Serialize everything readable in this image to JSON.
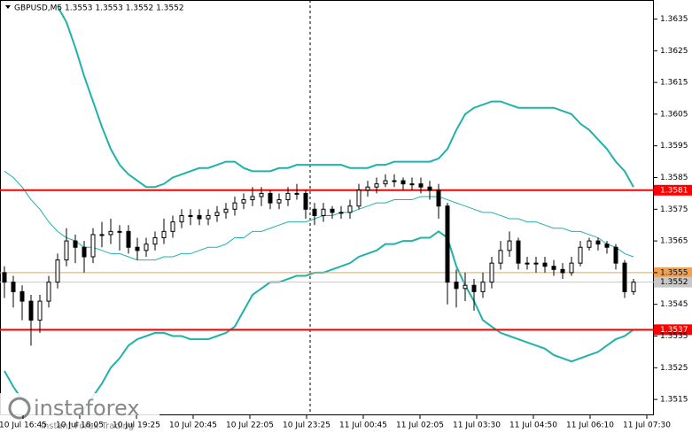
{
  "chart_data": {
    "type": "candlestick",
    "title": "GBPUSD,M5  1.3553 1.3553 1.3552 1.3552",
    "open": [
      1.3555,
      1.3552,
      1.3549,
      1.3546,
      1.354,
      1.3546,
      1.3552,
      1.3559,
      1.3565,
      1.3563,
      1.356,
      1.3567,
      1.3567,
      1.3568,
      1.3568,
      1.3563,
      1.3562,
      1.3564,
      1.3566,
      1.3568,
      1.3571,
      1.3573,
      1.3573,
      1.3572,
      1.3573,
      1.3574,
      1.3575,
      1.3577,
      1.3578,
      1.3579,
      1.358,
      1.3577,
      1.3578,
      1.358,
      1.358,
      1.3575,
      1.3573,
      1.3575,
      1.3574,
      1.3574,
      1.3576,
      1.3581,
      1.3582,
      1.3583,
      1.3584,
      1.3584,
      1.3583,
      1.3583,
      1.3582,
      1.3581,
      1.3576,
      1.3552,
      1.355,
      1.3551,
      1.3549,
      1.3552,
      1.3558,
      1.3562,
      1.3565,
      1.3558,
      1.3558,
      1.3558,
      1.3557,
      1.3556,
      1.3555,
      1.3558,
      1.3563,
      1.3565,
      1.3564,
      1.3563,
      1.3558,
      1.3549
    ],
    "high": [
      1.3557,
      1.3554,
      1.3551,
      1.3548,
      1.3548,
      1.3554,
      1.3561,
      1.3569,
      1.3567,
      1.3565,
      1.3569,
      1.3571,
      1.3572,
      1.357,
      1.357,
      1.3566,
      1.3566,
      1.3568,
      1.3572,
      1.3573,
      1.3575,
      1.3575,
      1.3575,
      1.3575,
      1.3576,
      1.3577,
      1.3579,
      1.358,
      1.3582,
      1.3582,
      1.3581,
      1.358,
      1.3582,
      1.3583,
      1.3581,
      1.3577,
      1.3577,
      1.3576,
      1.3576,
      1.3578,
      1.3583,
      1.3584,
      1.3585,
      1.3586,
      1.3586,
      1.3585,
      1.3585,
      1.3585,
      1.3584,
      1.3583,
      1.3577,
      1.3556,
      1.3555,
      1.3553,
      1.3555,
      1.356,
      1.3565,
      1.3568,
      1.3566,
      1.356,
      1.356,
      1.356,
      1.3559,
      1.3558,
      1.356,
      1.3565,
      1.3566,
      1.3566,
      1.3565,
      1.3564,
      1.3559,
      1.3553
    ],
    "low": [
      1.3547,
      1.3544,
      1.354,
      1.3532,
      1.3536,
      1.3544,
      1.355,
      1.3557,
      1.3558,
      1.3555,
      1.3558,
      1.3563,
      1.3564,
      1.3562,
      1.3561,
      1.3559,
      1.356,
      1.3562,
      1.3564,
      1.3566,
      1.3569,
      1.357,
      1.357,
      1.357,
      1.3571,
      1.3572,
      1.3573,
      1.3575,
      1.3576,
      1.3576,
      1.3575,
      1.3575,
      1.3576,
      1.3578,
      1.3572,
      1.357,
      1.3571,
      1.3572,
      1.3572,
      1.3572,
      1.3575,
      1.3579,
      1.358,
      1.3582,
      1.3582,
      1.3581,
      1.3581,
      1.358,
      1.3578,
      1.3572,
      1.3545,
      1.3544,
      1.3546,
      1.3543,
      1.3547,
      1.355,
      1.3556,
      1.356,
      1.3556,
      1.3556,
      1.3555,
      1.3555,
      1.3554,
      1.3553,
      1.3554,
      1.3557,
      1.3562,
      1.3562,
      1.3561,
      1.3556,
      1.3547,
      1.3548
    ],
    "close": [
      1.3552,
      1.3549,
      1.3546,
      1.354,
      1.3546,
      1.3552,
      1.3559,
      1.3565,
      1.3563,
      1.356,
      1.3567,
      1.3567,
      1.3568,
      1.3568,
      1.3563,
      1.3562,
      1.3564,
      1.3566,
      1.3568,
      1.3571,
      1.3573,
      1.3573,
      1.3572,
      1.3573,
      1.3574,
      1.3575,
      1.3577,
      1.3578,
      1.3579,
      1.358,
      1.3577,
      1.3578,
      1.358,
      1.358,
      1.3575,
      1.3573,
      1.3575,
      1.3574,
      1.3574,
      1.3576,
      1.3581,
      1.3582,
      1.3583,
      1.3584,
      1.3584,
      1.3583,
      1.3583,
      1.3582,
      1.3581,
      1.3576,
      1.3552,
      1.355,
      1.3551,
      1.3549,
      1.3552,
      1.3558,
      1.3562,
      1.3565,
      1.3558,
      1.3558,
      1.3558,
      1.3557,
      1.3556,
      1.3555,
      1.3558,
      1.3563,
      1.3565,
      1.3564,
      1.3563,
      1.3558,
      1.3549,
      1.3552
    ],
    "bands": [
      {
        "color": "#20b2aa",
        "values": [
          null,
          null,
          null,
          null,
          null,
          null,
          1.3639,
          1.3634,
          1.3626,
          1.3617,
          1.3609,
          1.3601,
          1.3594,
          1.3589,
          1.3586,
          1.3584,
          1.3582,
          1.3582,
          1.3583,
          1.3585,
          1.3586,
          1.3587,
          1.3588,
          1.3588,
          1.3589,
          1.359,
          1.359,
          1.3588,
          1.3587,
          1.3587,
          1.3587,
          1.3588,
          1.3588,
          1.3589,
          1.3589,
          1.3589,
          1.3589,
          1.3589,
          1.3589,
          1.3588,
          1.3588,
          1.3588,
          1.3589,
          1.3589,
          1.359,
          1.359,
          1.359,
          1.359,
          1.359,
          1.3591,
          1.3594,
          1.36,
          1.3605,
          1.3607,
          1.3608,
          1.3609,
          1.3609,
          1.3608,
          1.3607,
          1.3607,
          1.3607,
          1.3607,
          1.3607,
          1.3606,
          1.3605,
          1.3602,
          1.36,
          1.3597,
          1.3594,
          1.359,
          1.3587,
          1.3582
        ]
      },
      {
        "color": "#20b2aa",
        "values": [
          1.3587,
          1.3585,
          1.3582,
          1.3578,
          1.3575,
          1.3571,
          1.3568,
          1.3566,
          1.3565,
          1.3563,
          1.3563,
          1.3562,
          1.3561,
          1.3561,
          1.356,
          1.3559,
          1.3559,
          1.3559,
          1.356,
          1.356,
          1.3561,
          1.3561,
          1.3562,
          1.3563,
          1.3563,
          1.3564,
          1.3566,
          1.3566,
          1.3568,
          1.3568,
          1.3569,
          1.357,
          1.3571,
          1.3571,
          1.3571,
          1.3572,
          1.3573,
          1.3573,
          1.3574,
          1.3574,
          1.3575,
          1.3576,
          1.3577,
          1.3577,
          1.3578,
          1.3578,
          1.3578,
          1.3579,
          1.3579,
          1.3579,
          1.3578,
          1.3577,
          1.3576,
          1.3575,
          1.3574,
          1.3574,
          1.3573,
          1.3572,
          1.3572,
          1.3571,
          1.3571,
          1.357,
          1.3569,
          1.3569,
          1.3568,
          1.3568,
          1.3567,
          1.3566,
          1.3564,
          1.3563,
          1.3561,
          1.356
        ]
      },
      {
        "color": "#20b2aa",
        "values": [
          1.3524,
          1.3519,
          1.3515,
          1.3512,
          null,
          null,
          null,
          null,
          null,
          1.3512,
          1.3516,
          1.352,
          1.3525,
          1.3528,
          1.3532,
          1.3534,
          1.3535,
          1.3536,
          1.3536,
          1.3535,
          1.3535,
          1.3534,
          1.3534,
          1.3534,
          1.3535,
          1.3536,
          1.3538,
          1.3543,
          1.3548,
          1.355,
          1.3552,
          1.3552,
          1.3553,
          1.3554,
          1.3554,
          1.3555,
          1.3555,
          1.3556,
          1.3557,
          1.3558,
          1.356,
          1.3561,
          1.3562,
          1.3564,
          1.3564,
          1.3565,
          1.3565,
          1.3566,
          1.3566,
          1.3568,
          1.3566,
          1.3557,
          1.3551,
          1.3546,
          1.354,
          1.3538,
          1.3536,
          1.3535,
          1.3534,
          1.3533,
          1.3532,
          1.3531,
          1.3529,
          1.3528,
          1.3527,
          1.3528,
          1.3529,
          1.353,
          1.3532,
          1.3534,
          1.3535,
          1.3537
        ]
      }
    ],
    "levels": [
      {
        "value": 1.3581,
        "color": "#ff0000",
        "label_color": "#ffffff"
      },
      {
        "value": 1.3555,
        "color": "#f0a050",
        "label_color": "#ffffff"
      },
      {
        "value": 1.3552,
        "color": "#c8c8c8",
        "label_color": "#000000"
      },
      {
        "value": 1.3537,
        "color": "#ff0000",
        "label_color": "#ffffff"
      }
    ],
    "ylim": [
      1.351,
      1.3641
    ],
    "yticks": [
      1.3515,
      1.3525,
      1.3535,
      1.3545,
      1.3555,
      1.3565,
      1.3575,
      1.3585,
      1.3595,
      1.3605,
      1.3615,
      1.3625,
      1.3635
    ],
    "xlim": [
      -0.5,
      73.3
    ],
    "xticks": [
      {
        "value": 2.1,
        "label": "10 Jul 16:45"
      },
      {
        "value": 8.5,
        "label": "10 Jul 18:05"
      },
      {
        "value": 14.9,
        "label": "10 Jul 19:25"
      },
      {
        "value": 21.3,
        "label": "10 Jul 20:45"
      },
      {
        "value": 27.7,
        "label": "10 Jul 22:05"
      },
      {
        "value": 34.1,
        "label": "10 Jul 23:25"
      },
      {
        "value": 40.5,
        "label": "11 Jul 00:45"
      },
      {
        "value": 46.9,
        "label": "11 Jul 02:05"
      },
      {
        "value": 53.3,
        "label": "11 Jul 03:30"
      },
      {
        "value": 59.7,
        "label": "11 Jul 04:50"
      },
      {
        "value": 66.1,
        "label": "11 Jul 06:10"
      },
      {
        "value": 72.5,
        "label": "11 Jul 07:30"
      }
    ],
    "candle_color": "#000000",
    "watermark": {
      "brand": "instaforex",
      "tagline": "Instant Forex Trading"
    }
  }
}
